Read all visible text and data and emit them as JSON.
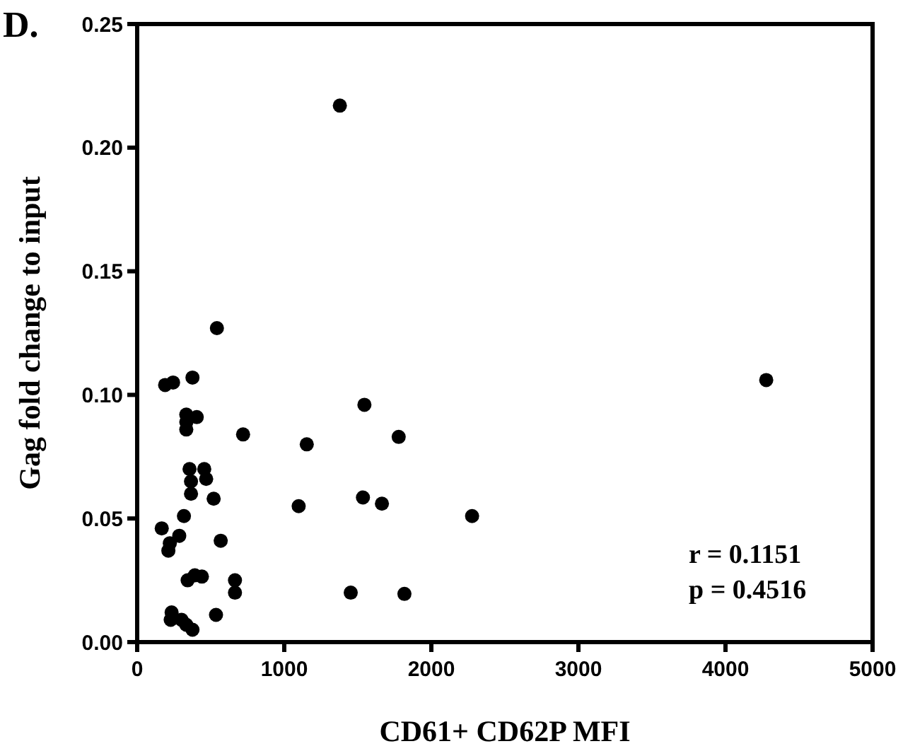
{
  "chart_data": {
    "type": "scatter",
    "title": "D.",
    "xlabel": "CD61+ CD62P MFI",
    "ylabel": "Gag fold change to input",
    "x": [
      1378,
      4277,
      2277,
      542,
      190,
      244,
      376,
      334,
      405,
      334,
      334,
      720,
      1153,
      1545,
      1778,
      356,
      456,
      366,
      469,
      366,
      520,
      1098,
      1535,
      1664,
      318,
      167,
      286,
      222,
      212,
      568,
      343,
      392,
      440,
      665,
      665,
      1452,
      1817,
      234,
      228,
      302,
      334,
      376,
      536
    ],
    "values": [
      0.217,
      0.106,
      0.051,
      0.127,
      0.104,
      0.105,
      0.107,
      0.092,
      0.091,
      0.089,
      0.086,
      0.084,
      0.08,
      0.096,
      0.083,
      0.07,
      0.07,
      0.065,
      0.066,
      0.06,
      0.058,
      0.055,
      0.0585,
      0.056,
      0.051,
      0.046,
      0.043,
      0.04,
      0.037,
      0.041,
      0.025,
      0.027,
      0.0265,
      0.025,
      0.02,
      0.02,
      0.0195,
      0.012,
      0.009,
      0.009,
      0.007,
      0.005,
      0.011
    ],
    "color": "#000000",
    "marker": "circle",
    "xlim": [
      0,
      5000
    ],
    "xticks": [
      0,
      1000,
      2000,
      3000,
      4000,
      5000
    ],
    "ylim": [
      0,
      0.25
    ],
    "yticks": [
      {
        "value": 0,
        "label": "0.00"
      },
      {
        "value": 0.05,
        "label": "0.05"
      },
      {
        "value": 0.1,
        "label": "0.10"
      },
      {
        "value": 0.15,
        "label": "0.15"
      },
      {
        "value": 0.2,
        "label": "0.20"
      },
      {
        "value": 0.25,
        "label": "0.25"
      }
    ],
    "annotations": [
      "r = 0.1151",
      "p = 0.4516"
    ],
    "grid": false
  }
}
